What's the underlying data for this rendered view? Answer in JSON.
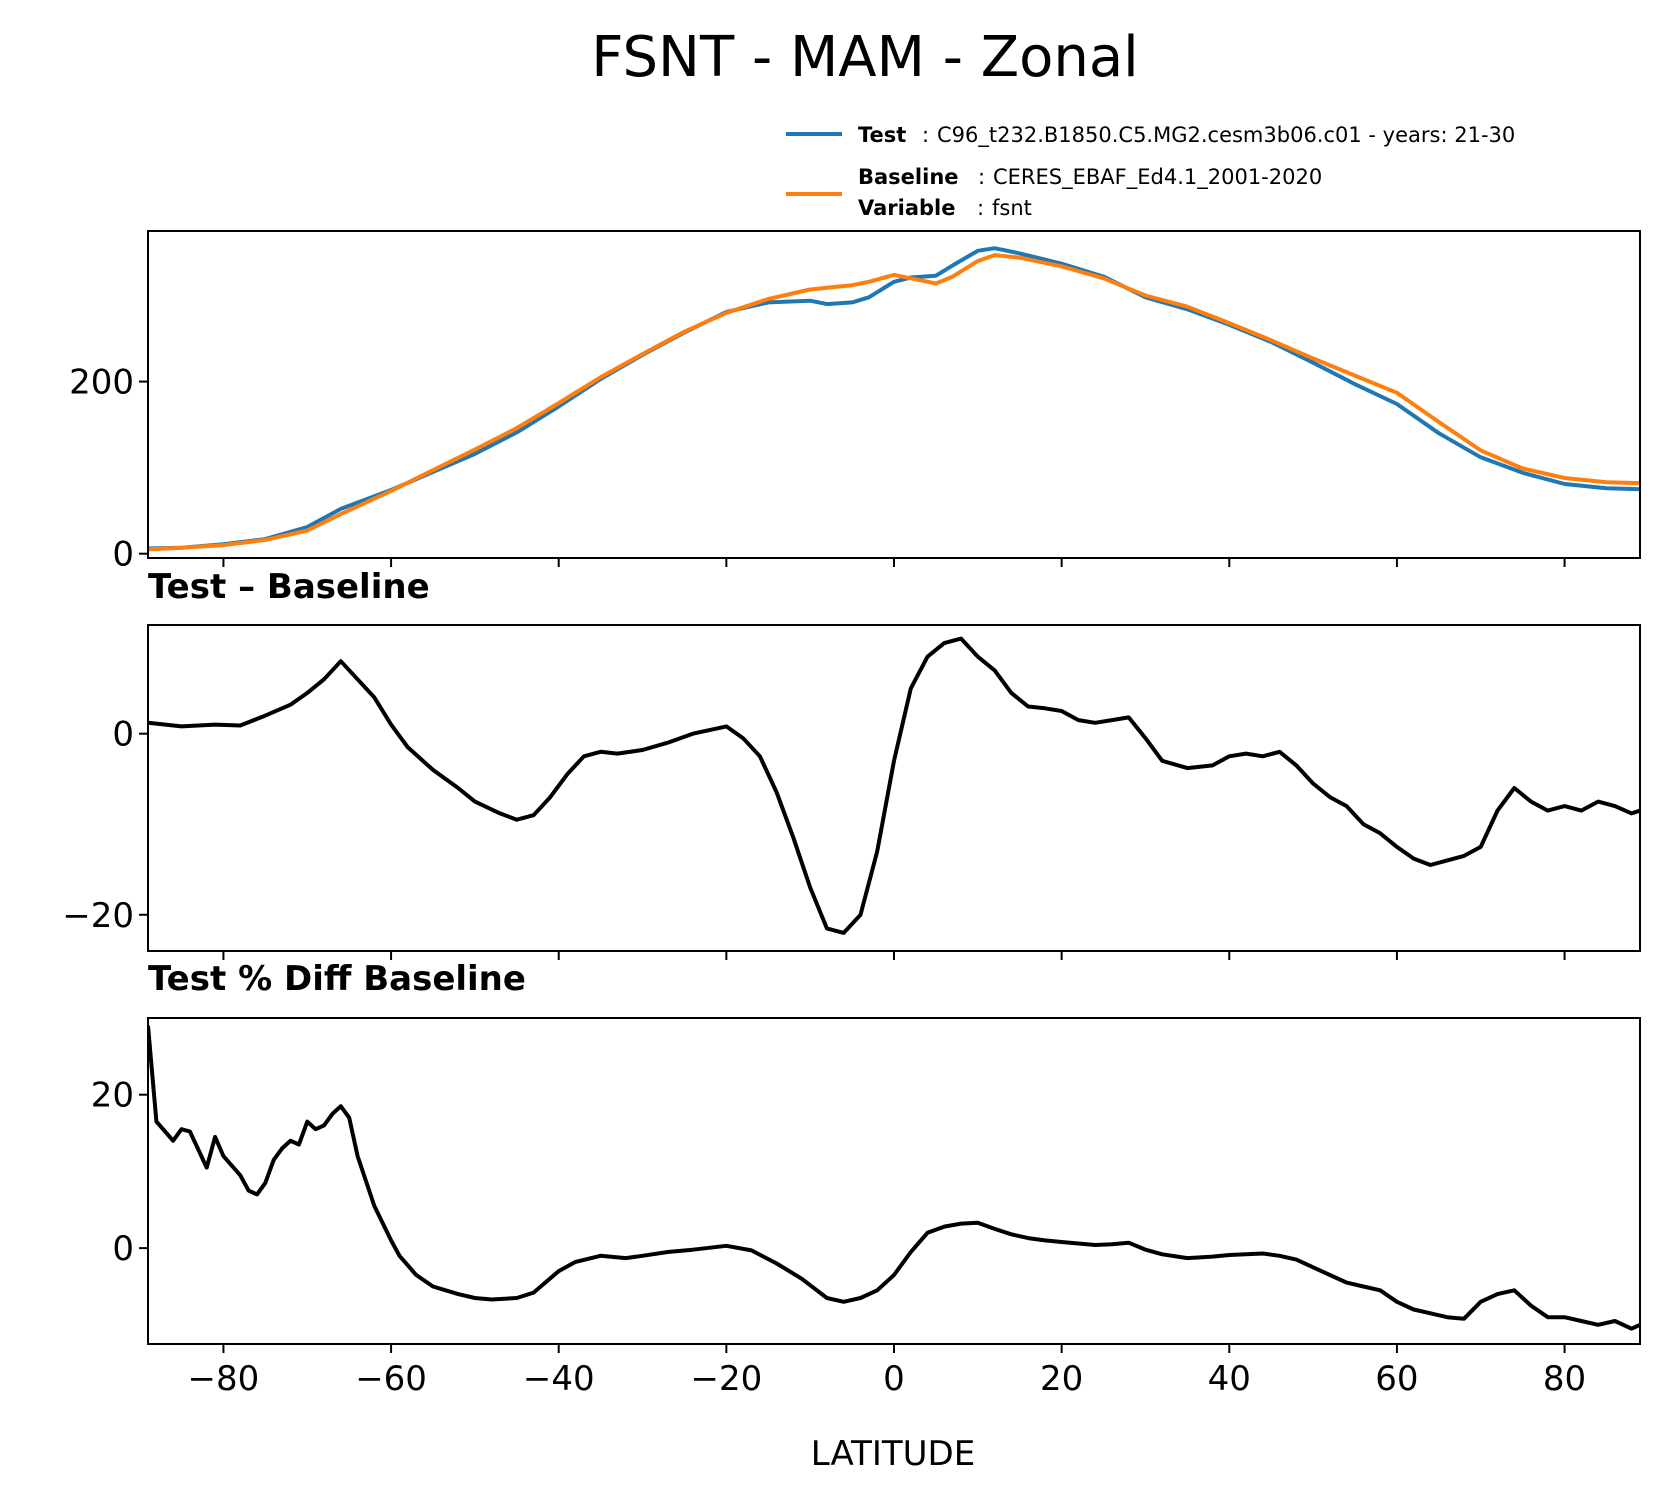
{
  "figure": {
    "title": "FSNT - MAM - Zonal",
    "xlabel": "LATITUDE"
  },
  "legend": {
    "placement": "top-right",
    "entries": [
      {
        "key": "Test",
        "text": "C96_t232.B1850.C5.MG2.cesm3b06.c01 - years: 21-30",
        "color": "#1f77b4"
      },
      {
        "key": "Baseline",
        "text": "CERES_EBAF_Ed4.1_2001-2020",
        "color": "#ff7f0e"
      },
      {
        "key": "Variable",
        "text": "fsnt"
      }
    ]
  },
  "colors": {
    "test": "#1f77b4",
    "baseline": "#ff7f0e",
    "diff": "#000000",
    "axes": "#000000"
  },
  "chart_data": [
    {
      "type": "line",
      "title": "",
      "xlabel": "",
      "ylabel": "",
      "xlim": [
        -89,
        89
      ],
      "ylim": [
        -5,
        375
      ],
      "yticks": [
        0,
        200
      ],
      "xticks": [
        -80,
        -60,
        -40,
        -20,
        0,
        20,
        40,
        60,
        80
      ],
      "x": [
        -89,
        -85,
        -80,
        -75,
        -70,
        -66,
        -60,
        -55,
        -50,
        -45,
        -40,
        -35,
        -30,
        -25,
        -20,
        -15,
        -10,
        -8,
        -5,
        -3,
        0,
        2,
        5,
        7,
        10,
        12,
        15,
        20,
        25,
        30,
        35,
        40,
        45,
        50,
        55,
        60,
        65,
        70,
        75,
        80,
        85,
        89
      ],
      "series": [
        {
          "name": "Test",
          "values": [
            6,
            7,
            11,
            17,
            31,
            52,
            74,
            95,
            116,
            141,
            171,
            203,
            231,
            257,
            281,
            292,
            294,
            290,
            292,
            298,
            316,
            321,
            323,
            335,
            352,
            355,
            349,
            337,
            322,
            298,
            284,
            266,
            246,
            222,
            197,
            174,
            140,
            112,
            94,
            81,
            76,
            75
          ]
        },
        {
          "name": "Baseline",
          "values": [
            5,
            7,
            10,
            16,
            27,
            46,
            73,
            97,
            121,
            146,
            175,
            205,
            232,
            258,
            280,
            296,
            307,
            309,
            312,
            316,
            324,
            320,
            314,
            322,
            340,
            347,
            344,
            334,
            320,
            300,
            287,
            268,
            248,
            227,
            207,
            187,
            153,
            120,
            99,
            88,
            83,
            82
          ]
        }
      ]
    },
    {
      "type": "line",
      "title": "Test – Baseline",
      "xlabel": "",
      "ylabel": "",
      "xlim": [
        -89,
        89
      ],
      "ylim": [
        -24,
        12
      ],
      "yticks": [
        -20,
        0
      ],
      "xticks": [
        -80,
        -60,
        -40,
        -20,
        0,
        20,
        40,
        60,
        80
      ],
      "x": [
        -89,
        -85,
        -81,
        -78,
        -75,
        -72,
        -70,
        -68,
        -66,
        -64,
        -62,
        -60,
        -58,
        -55,
        -52,
        -50,
        -47,
        -45,
        -43,
        -41,
        -39,
        -37,
        -35,
        -33,
        -30,
        -27,
        -24,
        -20,
        -18,
        -16,
        -14,
        -12,
        -10,
        -8,
        -6,
        -4,
        -2,
        0,
        2,
        4,
        6,
        8,
        10,
        12,
        14,
        16,
        18,
        20,
        22,
        24,
        26,
        28,
        30,
        32,
        35,
        38,
        40,
        42,
        44,
        46,
        48,
        50,
        52,
        54,
        56,
        58,
        60,
        62,
        64,
        66,
        68,
        70,
        72,
        74,
        76,
        78,
        80,
        82,
        84,
        86,
        88,
        89
      ],
      "series": [
        {
          "name": "",
          "values": [
            1.2,
            0.8,
            1.0,
            0.9,
            2.0,
            3.2,
            4.5,
            6.0,
            8.0,
            6.0,
            4.0,
            1.0,
            -1.5,
            -4.0,
            -6.0,
            -7.5,
            -8.8,
            -9.5,
            -9.0,
            -7.0,
            -4.5,
            -2.5,
            -2.0,
            -2.2,
            -1.8,
            -1.0,
            0.0,
            0.8,
            -0.5,
            -2.5,
            -6.5,
            -11.5,
            -17.0,
            -21.5,
            -22.0,
            -20.0,
            -13.0,
            -3.0,
            5.0,
            8.5,
            10.0,
            10.5,
            8.5,
            7.0,
            4.5,
            3.0,
            2.8,
            2.5,
            1.5,
            1.2,
            1.5,
            1.8,
            -0.5,
            -3.0,
            -3.8,
            -3.5,
            -2.5,
            -2.2,
            -2.5,
            -2.0,
            -3.5,
            -5.5,
            -7.0,
            -8.0,
            -10.0,
            -11.0,
            -12.5,
            -13.8,
            -14.5,
            -14.0,
            -13.5,
            -12.5,
            -8.5,
            -6.0,
            -7.5,
            -8.5,
            -8.0,
            -8.5,
            -7.5,
            -8.0,
            -8.8,
            -8.5
          ]
        }
      ]
    },
    {
      "type": "line",
      "title": "Test % Diff Baseline",
      "xlabel": "LATITUDE",
      "ylabel": "",
      "xlim": [
        -89,
        89
      ],
      "ylim": [
        -12.5,
        30
      ],
      "yticks": [
        0,
        20
      ],
      "xticks": [
        -80,
        -60,
        -40,
        -20,
        0,
        20,
        40,
        60,
        80
      ],
      "xtick_labels": [
        "−80",
        "−60",
        "−40",
        "−20",
        "0",
        "20",
        "40",
        "60",
        "80"
      ],
      "x": [
        -89,
        -88,
        -86,
        -85,
        -84,
        -82,
        -81,
        -80,
        -78,
        -77,
        -76,
        -75,
        -74,
        -73,
        -72,
        -71,
        -70,
        -69,
        -68,
        -67,
        -66,
        -65,
        -64,
        -62,
        -60,
        -59,
        -57,
        -55,
        -52,
        -50,
        -48,
        -45,
        -43,
        -40,
        -38,
        -35,
        -32,
        -30,
        -27,
        -24,
        -20,
        -17,
        -14,
        -11,
        -8,
        -6,
        -4,
        -2,
        0,
        2,
        4,
        6,
        8,
        10,
        12,
        14,
        16,
        18,
        20,
        22,
        24,
        26,
        28,
        30,
        32,
        35,
        38,
        40,
        42,
        44,
        46,
        48,
        50,
        52,
        54,
        56,
        58,
        60,
        62,
        64,
        66,
        68,
        70,
        72,
        74,
        76,
        78,
        80,
        82,
        84,
        86,
        88,
        89
      ],
      "series": [
        {
          "name": "",
          "values": [
            29.0,
            16.5,
            14.0,
            15.5,
            15.2,
            10.5,
            14.5,
            12.0,
            9.5,
            7.5,
            7.0,
            8.5,
            11.5,
            13.0,
            14.0,
            13.5,
            16.5,
            15.5,
            16.0,
            17.5,
            18.5,
            17.0,
            12.0,
            5.5,
            1.0,
            -1.0,
            -3.5,
            -5.0,
            -6.0,
            -6.5,
            -6.7,
            -6.5,
            -5.8,
            -3.0,
            -1.8,
            -1.0,
            -1.3,
            -1.0,
            -0.5,
            -0.2,
            0.3,
            -0.3,
            -2.0,
            -4.0,
            -6.5,
            -7.0,
            -6.5,
            -5.5,
            -3.5,
            -0.5,
            2.0,
            2.8,
            3.2,
            3.3,
            2.5,
            1.8,
            1.3,
            1.0,
            0.8,
            0.6,
            0.4,
            0.5,
            0.7,
            -0.2,
            -0.8,
            -1.3,
            -1.1,
            -0.9,
            -0.8,
            -0.7,
            -1.0,
            -1.5,
            -2.5,
            -3.5,
            -4.5,
            -5.0,
            -5.5,
            -7.0,
            -8.0,
            -8.5,
            -9.0,
            -9.2,
            -7.0,
            -6.0,
            -5.5,
            -7.5,
            -9.0,
            -9.0,
            -9.5,
            -10.0,
            -9.5,
            -10.5,
            -10.0
          ]
        }
      ]
    }
  ]
}
